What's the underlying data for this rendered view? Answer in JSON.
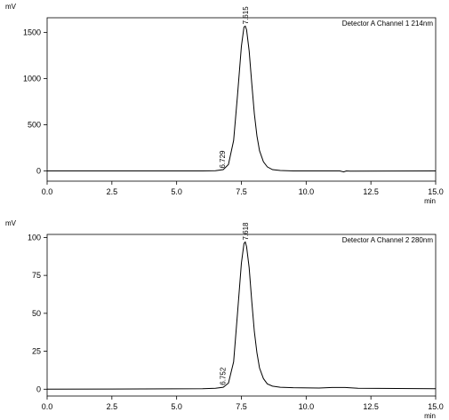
{
  "chart_data": [
    {
      "type": "line",
      "y_unit": "mV",
      "x_unit": "min",
      "legend": "Detector A Channel 1 214nm",
      "legend_position": "top-right",
      "xlim": [
        0,
        15
      ],
      "ylim": [
        -110,
        1660
      ],
      "x_ticks": [
        0.0,
        2.5,
        5.0,
        7.5,
        10.0,
        12.5,
        15.0
      ],
      "x_tick_labels": [
        "0.0",
        "2.5",
        "5.0",
        "7.5",
        "10.0",
        "12.5",
        "15.0"
      ],
      "y_ticks": [
        0,
        500,
        1000,
        1500
      ],
      "y_tick_labels": [
        "0",
        "500",
        "1000",
        "1500"
      ],
      "grid": false,
      "peaks": [
        {
          "label": "6.729",
          "x": 6.729,
          "y": 10
        },
        {
          "label": "7.615",
          "x": 7.615,
          "y": 1570
        }
      ],
      "x": [
        0,
        6.0,
        6.5,
        6.8,
        7.0,
        7.2,
        7.35,
        7.5,
        7.6,
        7.65,
        7.7,
        7.8,
        7.9,
        8.0,
        8.1,
        8.2,
        8.35,
        8.5,
        8.7,
        9.0,
        9.5,
        10.5,
        11.3,
        11.45,
        11.55,
        11.7,
        15
      ],
      "y": [
        0,
        0,
        3,
        15,
        70,
        330,
        820,
        1350,
        1560,
        1570,
        1530,
        1300,
        950,
        620,
        380,
        220,
        100,
        45,
        15,
        5,
        0,
        0,
        0,
        -10,
        0,
        -2,
        0
      ]
    },
    {
      "type": "line",
      "y_unit": "mV",
      "x_unit": "min",
      "legend": "Detector A Channel 2 280nm",
      "legend_position": "top-right",
      "xlim": [
        0,
        15
      ],
      "ylim": [
        -4.5,
        102
      ],
      "x_ticks": [
        0.0,
        2.5,
        5.0,
        7.5,
        10.0,
        12.5,
        15.0
      ],
      "x_tick_labels": [
        "0.0",
        "2.5",
        "5.0",
        "7.5",
        "10.0",
        "12.5",
        "15.0"
      ],
      "y_ticks": [
        0,
        25,
        50,
        75,
        100
      ],
      "y_tick_labels": [
        "0",
        "25",
        "50",
        "75",
        "100"
      ],
      "grid": false,
      "peaks": [
        {
          "label": "6.752",
          "x": 6.752,
          "y": 1.5
        },
        {
          "label": "7.618",
          "x": 7.618,
          "y": 97
        }
      ],
      "x": [
        0,
        6.0,
        6.5,
        6.8,
        7.0,
        7.2,
        7.35,
        7.5,
        7.6,
        7.65,
        7.7,
        7.8,
        7.9,
        8.0,
        8.1,
        8.2,
        8.35,
        8.5,
        8.7,
        9.0,
        9.5,
        10.5,
        11.0,
        11.5,
        12.0,
        15
      ],
      "y": [
        0,
        0.3,
        0.6,
        1.3,
        4,
        18,
        50,
        83,
        96,
        97,
        94,
        80,
        58,
        38,
        24,
        14,
        7,
        3.5,
        2,
        1.3,
        1,
        0.8,
        1.1,
        1.1,
        0.6,
        0.3
      ]
    }
  ]
}
